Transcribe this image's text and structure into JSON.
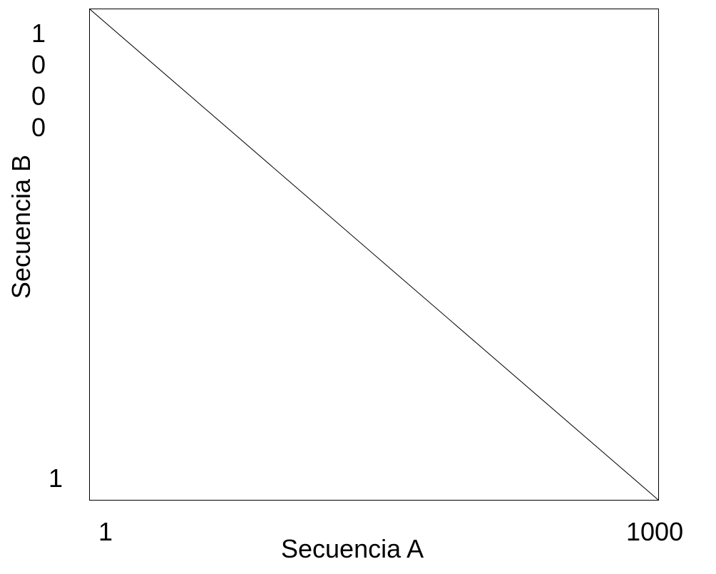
{
  "diagram": {
    "type": "dot-plot",
    "x_axis": {
      "title": "Secuencia A",
      "min_label": "1",
      "max_label": "1000"
    },
    "y_axis": {
      "title": "Secuencia B",
      "min_label": "1",
      "max_label": "1000"
    },
    "line": {
      "from": {
        "x": 1,
        "y": 1000
      },
      "to": {
        "x": 1000,
        "y": 1
      }
    },
    "colors": {
      "frame": "#000000",
      "line": "#000000",
      "background": "#ffffff"
    }
  }
}
